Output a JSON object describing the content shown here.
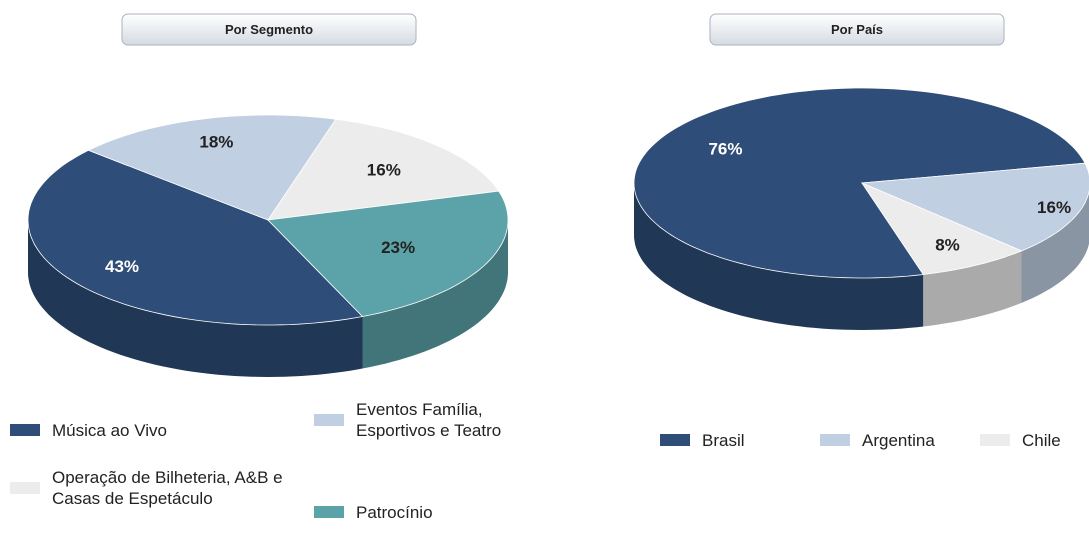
{
  "chart_data": [
    {
      "type": "pie",
      "title": "Por Segmento",
      "categories": [
        "Música ao Vivo",
        "Eventos Família, Esportivos e Teatro",
        "Operação de Bilheteria, A&B e Casas de Espetáculo",
        "Patrocínio"
      ],
      "values": [
        43,
        18,
        16,
        23
      ],
      "value_labels": [
        "43%",
        "18%",
        "16%",
        "23%"
      ],
      "colors": [
        "#2e4d78",
        "#c0cfe2",
        "#ececec",
        "#5ba3a8"
      ]
    },
    {
      "type": "pie",
      "title": "Por País",
      "categories": [
        "Brasil",
        "Argentina",
        "Chile"
      ],
      "values": [
        76,
        16,
        8
      ],
      "value_labels": [
        "76%",
        "16%",
        "8%"
      ],
      "colors": [
        "#2e4d78",
        "#c0cfe2",
        "#ececec"
      ]
    }
  ]
}
